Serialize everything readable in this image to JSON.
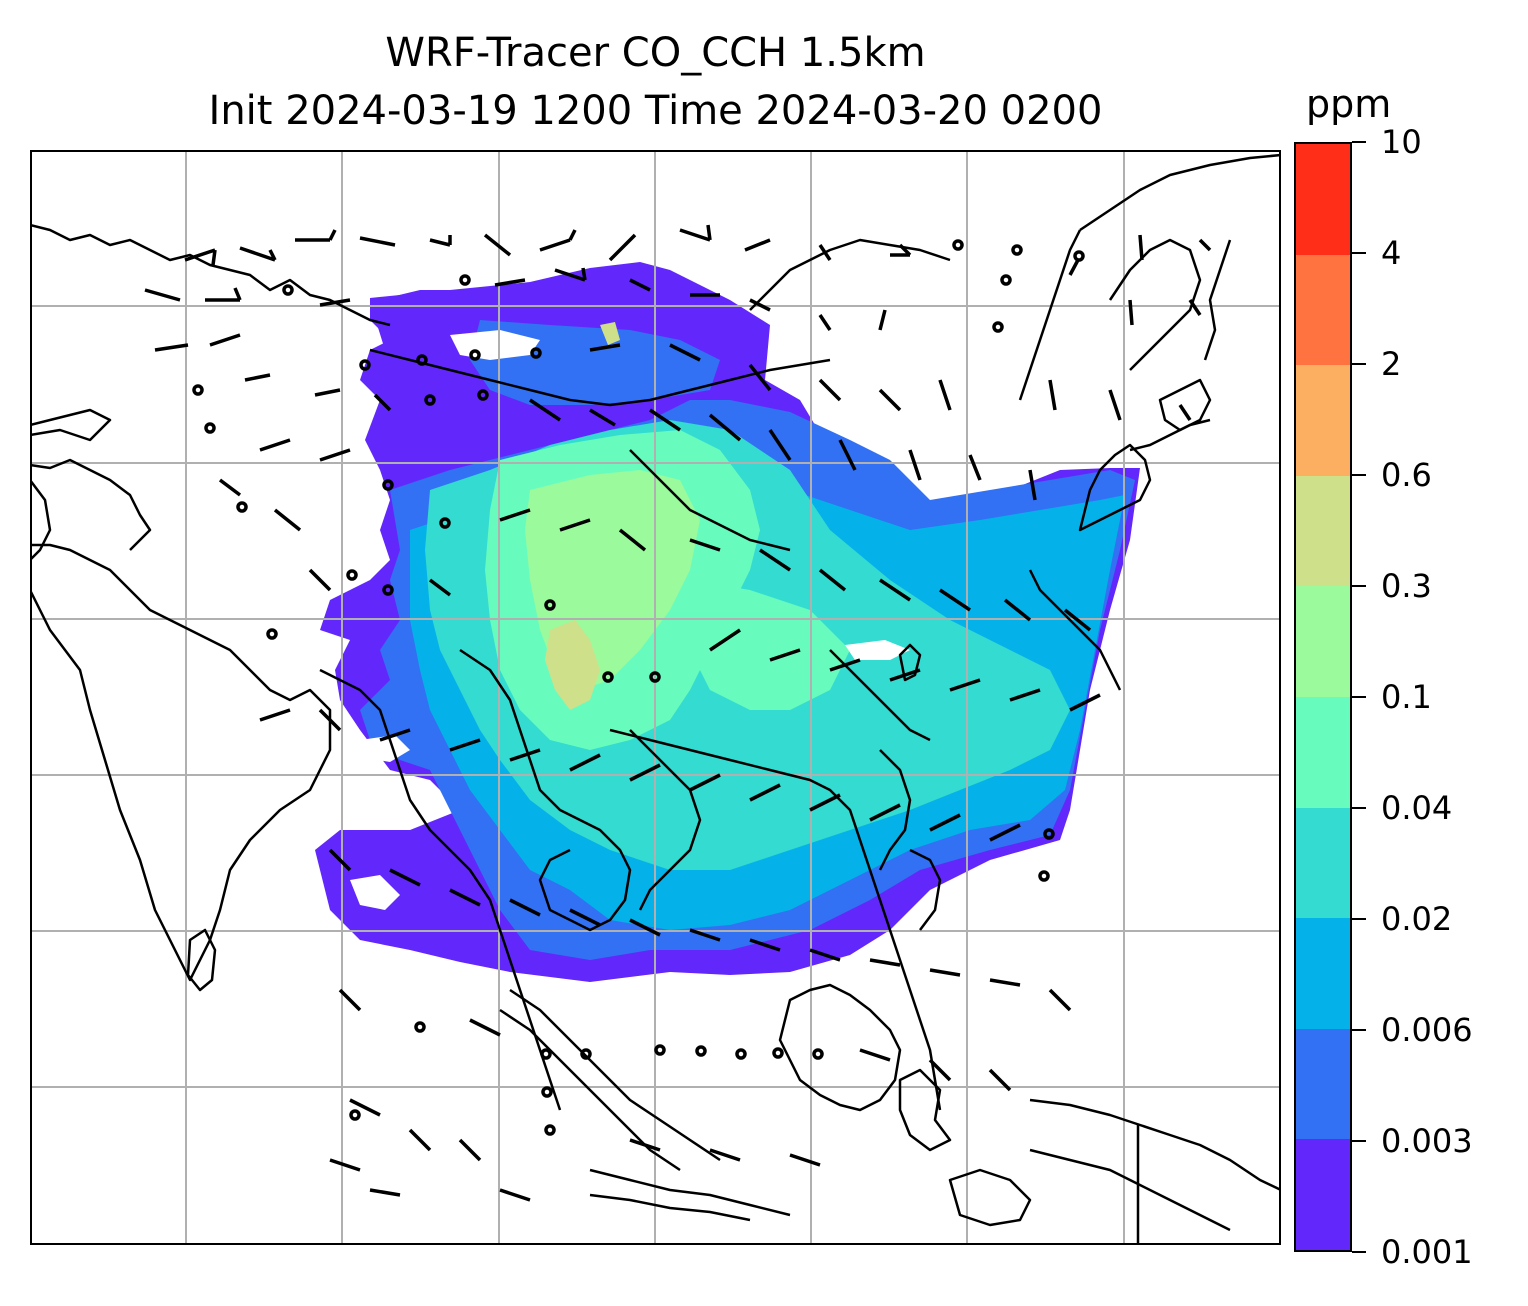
{
  "title": {
    "line1": "WRF-Tracer CO_CCH 1.5km",
    "line2": "Init 2024-03-19 1200 Time 2024-03-20 0200"
  },
  "colorbar": {
    "unit": "ppm",
    "levels": [
      "0.001",
      "0.003",
      "0.006",
      "0.02",
      "0.04",
      "0.1",
      "0.3",
      "0.6",
      "2",
      "4",
      "10"
    ],
    "colors": [
      "#6228fb",
      "#3271f3",
      "#05b1e9",
      "#33dbd0",
      "#67fcbd",
      "#9afa9c",
      "#cfe08a",
      "#fdaf61",
      "#ff7341",
      "#ff2e18"
    ]
  },
  "map": {
    "coastline_color": "#000000",
    "gridline_color": "#b0b0b0",
    "gridlines_shown": true,
    "wind_barbs_shown": true
  }
}
